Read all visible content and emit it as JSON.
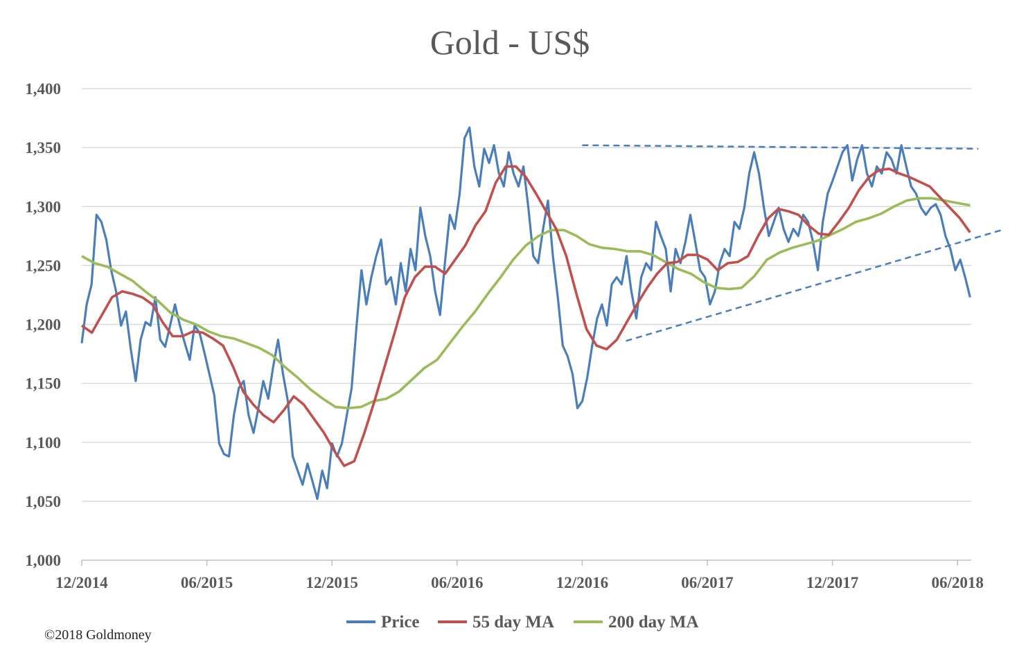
{
  "chart_data": {
    "type": "line",
    "title": "Gold - US$",
    "xlabel": "",
    "ylabel": "",
    "x_unit": "months since 12/2014",
    "xlim": [
      0,
      42.6
    ],
    "ylim": [
      1000,
      1400
    ],
    "y_ticks": [
      1000,
      1050,
      1100,
      1150,
      1200,
      1250,
      1300,
      1350,
      1400
    ],
    "y_tick_labels": [
      "1,000",
      "1,050",
      "1,100",
      "1,150",
      "1,200",
      "1,250",
      "1,300",
      "1,350",
      "1,400"
    ],
    "x_ticks": [
      0,
      6,
      12,
      18,
      24,
      30,
      36,
      42
    ],
    "x_tick_labels": [
      "12/2014",
      "06/2015",
      "12/2015",
      "06/2016",
      "12/2016",
      "06/2017",
      "12/2017",
      "06/2018"
    ],
    "grid": "horizontal",
    "legend_position": "bottom",
    "series": [
      {
        "name": "Price",
        "color": "#4a7ebb",
        "values": [
          1184,
          1217,
          1234,
          1293,
          1287,
          1272,
          1246,
          1228,
          1199,
          1211,
          1179,
          1152,
          1187,
          1202,
          1199,
          1223,
          1187,
          1181,
          1199,
          1217,
          1199,
          1184,
          1170,
          1199,
          1193,
          1176,
          1158,
          1140,
          1099,
          1090,
          1088,
          1123,
          1146,
          1152,
          1123,
          1108,
          1129,
          1152,
          1137,
          1164,
          1187,
          1158,
          1135,
          1088,
          1076,
          1064,
          1082,
          1067,
          1052,
          1076,
          1061,
          1099,
          1088,
          1099,
          1123,
          1146,
          1199,
          1246,
          1217,
          1240,
          1258,
          1272,
          1234,
          1240,
          1217,
          1252,
          1228,
          1264,
          1246,
          1299,
          1275,
          1258,
          1228,
          1208,
          1252,
          1293,
          1281,
          1311,
          1358,
          1367,
          1334,
          1317,
          1349,
          1337,
          1352,
          1328,
          1317,
          1346,
          1328,
          1317,
          1334,
          1299,
          1258,
          1252,
          1281,
          1305,
          1258,
          1223,
          1182,
          1173,
          1158,
          1129,
          1135,
          1155,
          1182,
          1205,
          1217,
          1199,
          1234,
          1240,
          1234,
          1258,
          1228,
          1205,
          1240,
          1252,
          1246,
          1287,
          1275,
          1264,
          1228,
          1264,
          1252,
          1270,
          1293,
          1270,
          1246,
          1240,
          1217,
          1228,
          1252,
          1264,
          1258,
          1287,
          1281,
          1299,
          1328,
          1346,
          1328,
          1299,
          1275,
          1287,
          1299,
          1281,
          1270,
          1281,
          1275,
          1293,
          1287,
          1270,
          1246,
          1287,
          1311,
          1322,
          1334,
          1346,
          1352,
          1322,
          1340,
          1352,
          1328,
          1317,
          1334,
          1328,
          1346,
          1340,
          1328,
          1352,
          1334,
          1317,
          1311,
          1299,
          1293,
          1299,
          1302,
          1293,
          1275,
          1264,
          1246,
          1255,
          1240,
          1223
        ]
      },
      {
        "name": "55 day MA",
        "color": "#c0504d",
        "values": [
          1199,
          1193,
          1208,
          1223,
          1228,
          1226,
          1223,
          1217,
          1202,
          1190,
          1190,
          1194,
          1193,
          1188,
          1182,
          1164,
          1143,
          1132,
          1123,
          1117,
          1127,
          1139,
          1132,
          1120,
          1108,
          1093,
          1080,
          1084,
          1108,
          1135,
          1164,
          1193,
          1223,
          1240,
          1249,
          1249,
          1243,
          1255,
          1267,
          1284,
          1296,
          1320,
          1334,
          1334,
          1325,
          1311,
          1296,
          1281,
          1258,
          1226,
          1196,
          1182,
          1179,
          1187,
          1202,
          1217,
          1231,
          1243,
          1252,
          1253,
          1259,
          1259,
          1255,
          1246,
          1252,
          1253,
          1258,
          1275,
          1290,
          1298,
          1296,
          1293,
          1284,
          1277,
          1276,
          1287,
          1299,
          1314,
          1325,
          1331,
          1332,
          1328,
          1325,
          1321,
          1317,
          1308,
          1299,
          1290,
          1278
        ]
      },
      {
        "name": "200 day MA",
        "color": "#9bbb59",
        "values": [
          1258,
          1252,
          1249,
          1243,
          1237,
          1228,
          1220,
          1210,
          1204,
          1200,
          1194,
          1190,
          1188,
          1184,
          1180,
          1174,
          1164,
          1155,
          1145,
          1137,
          1130,
          1129,
          1130,
          1135,
          1137,
          1143,
          1153,
          1163,
          1170,
          1184,
          1198,
          1211,
          1226,
          1240,
          1255,
          1267,
          1275,
          1280,
          1280,
          1275,
          1268,
          1265,
          1264,
          1262,
          1262,
          1259,
          1253,
          1247,
          1243,
          1236,
          1231,
          1230,
          1231,
          1241,
          1255,
          1261,
          1265,
          1268,
          1271,
          1276,
          1281,
          1287,
          1290,
          1294,
          1300,
          1305,
          1307,
          1307,
          1305,
          1303,
          1301
        ]
      }
    ],
    "annotations": [
      {
        "type": "dashed-trendline",
        "name": "resistance",
        "color": "#4a7ebb",
        "from": [
          24.0,
          1352
        ],
        "to": [
          43.0,
          1349
        ]
      },
      {
        "type": "dashed-trendline",
        "name": "support",
        "color": "#4a7ebb",
        "from": [
          26.1,
          1186
        ],
        "to": [
          44.1,
          1280
        ]
      }
    ]
  },
  "footer": {
    "copyright": "©2018 Goldmoney"
  }
}
